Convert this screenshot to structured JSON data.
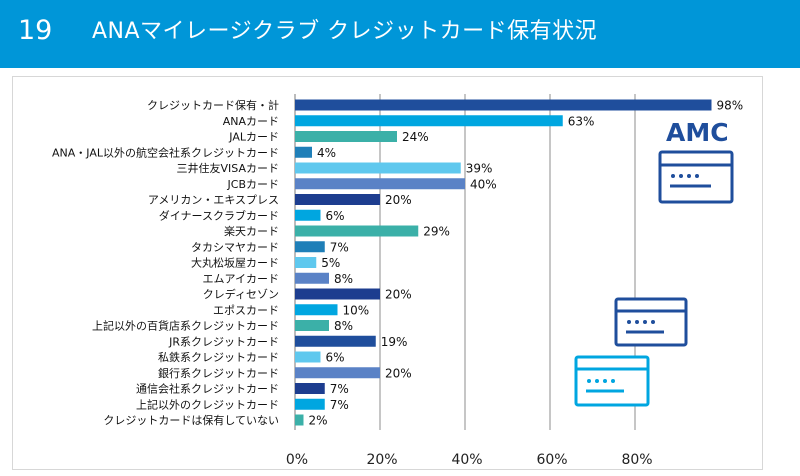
{
  "header": {
    "number": "19",
    "title": "ANAマイレージクラブ クレジットカード保有状況"
  },
  "decoration": {
    "card_badge_text": "AMC",
    "icons": [
      "amc-card-icon",
      "credit-card-icon",
      "credit-card-icon"
    ]
  },
  "colors": {
    "header_bg": "#0096d8",
    "dark_blue": "#1f4e9c",
    "light_blue": "#00a6e0",
    "teal": "#3bb0a8",
    "steel_blue": "#5a82c6",
    "sky_blue": "#5fc8ee",
    "navy": "#1d3d8f"
  },
  "chart_data": {
    "type": "bar",
    "orientation": "horizontal",
    "categories": [
      "クレジットカード保有・計",
      "ANAカード",
      "JALカード",
      "ANA・JAL以外の航空会社系クレジットカード",
      "三井住友VISAカード",
      "JCBカード",
      "アメリカン・エキスプレス",
      "ダイナースクラブカード",
      "楽天カード",
      "タカシマヤカード",
      "大丸松坂屋カード",
      "エムアイカード",
      "クレディセゾン",
      "エポスカード",
      "上記以外の百貨店系クレジットカード",
      "JR系クレジットカード",
      "私鉄系クレジットカード",
      "銀行系クレジットカード",
      "通信会社系クレジットカード",
      "上記以外のクレジットカード",
      "クレジットカードは保有していない"
    ],
    "values": [
      98,
      63,
      24,
      4,
      39,
      40,
      20,
      6,
      29,
      7,
      5,
      8,
      20,
      10,
      8,
      19,
      6,
      20,
      7,
      7,
      2
    ],
    "value_labels": [
      "98%",
      "63%",
      "24%",
      "4%",
      "39%",
      "40%",
      "20%",
      "6%",
      "29%",
      "7%",
      "5%",
      "8%",
      "20%",
      "10%",
      "8%",
      "19%",
      "6%",
      "20%",
      "7%",
      "7%",
      "2%"
    ],
    "bar_colors": [
      "#1f4e9c",
      "#00a6e0",
      "#3bb0a8",
      "#1f7fb8",
      "#5fc8ee",
      "#5a82c6",
      "#1d3d8f",
      "#00a6e0",
      "#3bb0a8",
      "#1f7fb8",
      "#5fc8ee",
      "#5a82c6",
      "#1d3d8f",
      "#00a6e0",
      "#3bb0a8",
      "#1f4e9c",
      "#5fc8ee",
      "#5a82c6",
      "#1d3d8f",
      "#00a6e0",
      "#3bb0a8"
    ],
    "xlim": [
      0,
      100
    ],
    "x_ticks": [
      0,
      20,
      40,
      60,
      80
    ],
    "x_tick_labels": [
      "0%",
      "20%",
      "40%",
      "60%",
      "80%"
    ],
    "grid": true,
    "legend": "none"
  }
}
